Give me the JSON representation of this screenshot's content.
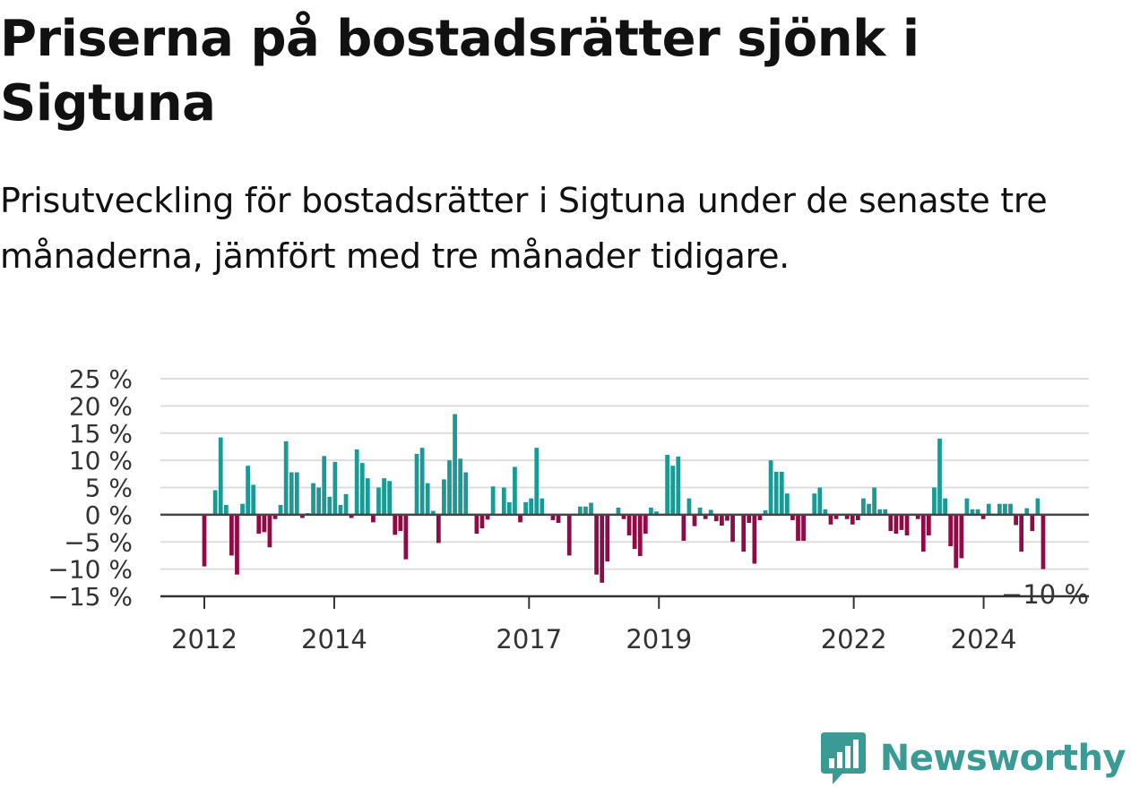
{
  "title": "Priserna på bostadsrätter sjönk i Sigtuna",
  "subtitle": "Prisutveckling för bostadsrätter i Sigtuna under de senaste tre månaderna, jämfört med tre månader tidigare.",
  "brand": {
    "name": "Newsworthy",
    "icon": "newsworthy-logo-icon",
    "color": "#3a9a94"
  },
  "chart_data": {
    "type": "bar",
    "title": "Priserna på bostadsrätter sjönk i Sigtuna",
    "subtitle": "Prisutveckling för bostadsrätter i Sigtuna under de senaste tre månaderna, jämfört med tre månader tidigare.",
    "xlabel": "",
    "ylabel": "",
    "ylim": [
      -15,
      25
    ],
    "y_ticks": [
      "25 %",
      "20 %",
      "15 %",
      "10 %",
      "5 %",
      "0 %",
      "−5 %",
      "−10 %",
      "−15 %"
    ],
    "y_tick_values": [
      25,
      20,
      15,
      10,
      5,
      0,
      -5,
      -10,
      -15
    ],
    "x_tick_labels": [
      "2012",
      "2014",
      "2017",
      "2019",
      "2022",
      "2024"
    ],
    "x_tick_years": [
      2012,
      2014,
      2017,
      2019,
      2022,
      2024
    ],
    "x_start": "2012-01",
    "x_end": "2024-12",
    "grid": true,
    "positive_color": "#1a9a94",
    "negative_color": "#8e0b45",
    "last_value_label": "−10 %",
    "series": [
      {
        "values": [
          -9.5,
          0,
          4.5,
          14.2,
          1.8,
          -7.5,
          -11,
          2,
          9,
          5.5,
          -3.5,
          -3.2,
          -6,
          -0.8,
          1.8,
          13.5,
          7.8,
          7.8,
          -0.6,
          0.3,
          5.8,
          5.0,
          10.8,
          3.3,
          9.7,
          1.8,
          3.8,
          -0.6,
          12,
          9.5,
          6.7,
          -1.4,
          5,
          6.7,
          6.2,
          -3.7,
          -3,
          -8.2,
          0,
          11.2,
          12.3,
          5.8,
          0.7,
          -5.2,
          6.5,
          10,
          18.5,
          10.3,
          7.8,
          0,
          -3.5,
          -2.5,
          -0.9,
          5.2,
          0,
          5,
          2.3,
          8.8,
          -1.4,
          2.3,
          3,
          12.3,
          3,
          0,
          -1,
          -1.5,
          0,
          -7.5,
          0,
          1.5,
          1.5,
          2.2,
          -11,
          -12.5,
          -8.6,
          0,
          1.3,
          -0.8,
          -3.8,
          -6.3,
          -7.6,
          -3.5,
          1.3,
          0.6,
          0,
          11,
          9,
          10.7,
          -4.8,
          3,
          -2.1,
          1.3,
          -0.8,
          0.9,
          -1.2,
          -2,
          -1.1,
          -5,
          0,
          -6.8,
          -1.5,
          -9,
          -1,
          0.8,
          10,
          7.9,
          7.9,
          3.9,
          -1,
          -4.8,
          -4.8,
          0,
          3.9,
          5,
          1,
          -1.8,
          -0.8,
          0,
          -0.8,
          -1.8,
          -1,
          3,
          2,
          5,
          1,
          1,
          -3,
          -3.5,
          -2.8,
          -3.8,
          0,
          -0.8,
          -6.8,
          -3.8,
          5,
          14,
          3,
          -5.8,
          -9.8,
          -8,
          3,
          1,
          1,
          -0.8,
          2,
          0,
          2,
          2,
          2,
          -1.9,
          -6.8,
          1.2,
          -3,
          3,
          -10
        ]
      }
    ]
  }
}
